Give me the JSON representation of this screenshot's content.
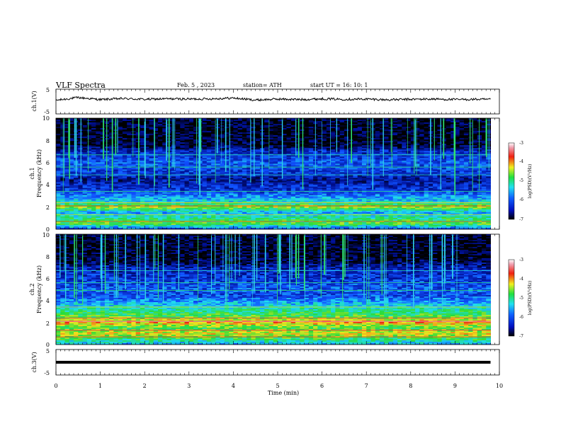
{
  "header": {
    "title": "VLF  Spectra",
    "date": "Feb. 5  , 2023",
    "station": "station= ATH",
    "start": "start  UT  =    16: 10: 1"
  },
  "panels": {
    "ch1_wave": {
      "ylabel": "ch.1(V)",
      "ticks": [
        "5",
        "-5"
      ]
    },
    "ch1_spec": {
      "ylabel_1": "ch.1",
      "ylabel_2": "Frequency  (kHz)",
      "ticks": [
        "10",
        "8",
        "6",
        "4",
        "2",
        "0"
      ]
    },
    "ch2_spec": {
      "ylabel_1": "ch.2",
      "ylabel_2": "Frequency  (kHz)",
      "ticks": [
        "10",
        "8",
        "6",
        "4",
        "2",
        "0"
      ]
    },
    "ch3_wave": {
      "ylabel": "ch.3(V)",
      "ticks": [
        "5",
        "-5"
      ]
    }
  },
  "colorbar": {
    "label": "log(PSD)(V²/Hz)",
    "ticks": [
      "-3",
      "-4",
      "-5",
      "-6",
      "-7"
    ]
  },
  "xaxis": {
    "label": "Time  (min)",
    "ticks": [
      "0",
      "1",
      "2",
      "3",
      "4",
      "5",
      "6",
      "7",
      "8",
      "9",
      "10"
    ]
  },
  "colors": {
    "spec_dark": "#000000",
    "spec_blue": "#0a28d2",
    "spec_cyan": "#20d8e8",
    "spec_green": "#30e040",
    "spec_yellow": "#f0e020",
    "spec_red": "#e82020",
    "spec_magenta": "#e040e0"
  },
  "chart_data": [
    {
      "type": "line",
      "title": "ch.1(V)",
      "xlabel": "Time  (min)",
      "ylabel": "ch.1(V)",
      "xlim": [
        0,
        10
      ],
      "ylim": [
        -5,
        5
      ],
      "x": [
        0,
        0.5,
        1,
        1.5,
        2,
        2.5,
        3,
        3.5,
        4,
        4.5,
        5,
        5.5,
        6,
        6.5,
        7,
        7.5,
        8,
        8.5,
        9,
        9.5,
        9.8
      ],
      "values": [
        0.5,
        1.6,
        0.8,
        1.2,
        0.9,
        1.1,
        1.0,
        1.1,
        1.4,
        0.6,
        1.0,
        0.8,
        1.1,
        0.9,
        1.0,
        0.7,
        0.9,
        1.0,
        0.8,
        0.9,
        0.8
      ]
    },
    {
      "type": "heatmap",
      "title": "ch.1",
      "xlabel": "Time  (min)",
      "ylabel": "Frequency  (kHz)",
      "xlim": [
        0,
        10
      ],
      "ylim": [
        0,
        10
      ],
      "data_end_min": 9.8,
      "colorscale_range": [
        -7,
        -3
      ],
      "freq_profile_khz": [
        0,
        0.5,
        1,
        1.5,
        2,
        2.5,
        3,
        3.5,
        4,
        4.5,
        5,
        5.5,
        6,
        6.5,
        7,
        7.5,
        8,
        8.5,
        9,
        9.5,
        10
      ],
      "log_psd_profile": [
        -6.2,
        -5.0,
        -5.3,
        -5.8,
        -4.8,
        -5.6,
        -5.9,
        -6.3,
        -6.4,
        -6.6,
        -6.3,
        -6.2,
        -6.1,
        -6.3,
        -6.4,
        -6.8,
        -6.9,
        -6.9,
        -6.9,
        -6.9,
        -6.9
      ]
    },
    {
      "type": "heatmap",
      "title": "ch.2",
      "xlabel": "Time  (min)",
      "ylabel": "Frequency  (kHz)",
      "xlim": [
        0,
        10
      ],
      "ylim": [
        0,
        10
      ],
      "data_end_min": 9.8,
      "colorscale_range": [
        -7,
        -3
      ],
      "freq_profile_khz": [
        0,
        0.5,
        1,
        1.5,
        2,
        2.5,
        3,
        3.5,
        4,
        4.5,
        5,
        5.5,
        6,
        6.5,
        7,
        7.5,
        8,
        8.5,
        9,
        9.5,
        10
      ],
      "log_psd_profile": [
        -5.8,
        -5.2,
        -4.6,
        -5.1,
        -4.4,
        -5.0,
        -5.3,
        -5.6,
        -5.9,
        -6.2,
        -6.1,
        -6.2,
        -6.3,
        -6.4,
        -6.5,
        -6.8,
        -6.9,
        -6.9,
        -6.9,
        -6.9,
        -6.9
      ]
    },
    {
      "type": "line",
      "title": "ch.3(V)",
      "xlabel": "Time  (min)",
      "ylabel": "ch.3(V)",
      "xlim": [
        0,
        10
      ],
      "ylim": [
        -5,
        5
      ],
      "x": [
        0,
        9.8
      ],
      "values": [
        0,
        0
      ]
    }
  ]
}
